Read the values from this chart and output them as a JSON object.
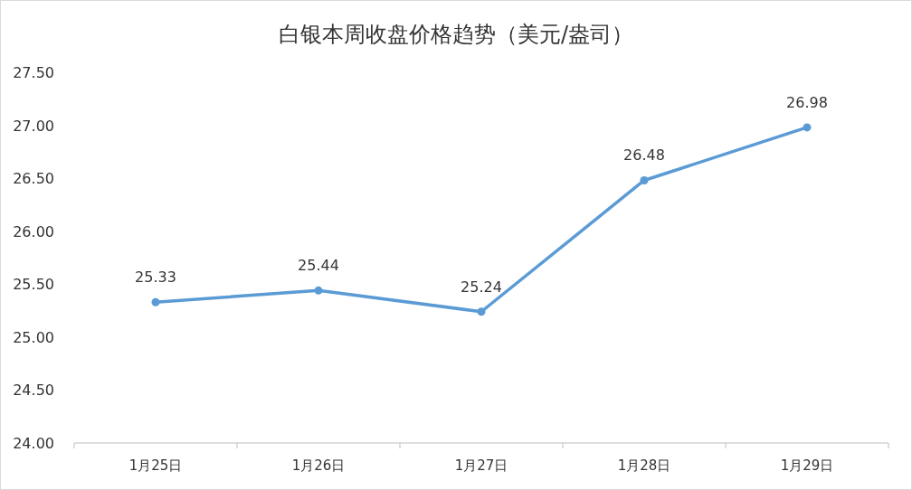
{
  "chart_data": {
    "type": "line",
    "title": "白银本周收盘价格趋势（美元/盎司）",
    "categories": [
      "1月25日",
      "1月26日",
      "1月27日",
      "1月28日",
      "1月29日"
    ],
    "series": [
      {
        "color": "#5b9bd5",
        "values": [
          25.33,
          25.44,
          25.24,
          26.48,
          26.98
        ]
      }
    ],
    "ylim": [
      24,
      27.5
    ],
    "yticks": [
      {
        "value": 24,
        "label": "24.00"
      },
      {
        "value": 24.5,
        "label": "24.50"
      },
      {
        "value": 25,
        "label": "25.00"
      },
      {
        "value": 25.5,
        "label": "25.50"
      },
      {
        "value": 26,
        "label": "26.00"
      },
      {
        "value": 26.5,
        "label": "26.50"
      },
      {
        "value": 27,
        "label": "27.00"
      },
      {
        "value": 27.5,
        "label": "27.50"
      }
    ],
    "data_labels": true,
    "marker": "circle",
    "grid": false
  }
}
